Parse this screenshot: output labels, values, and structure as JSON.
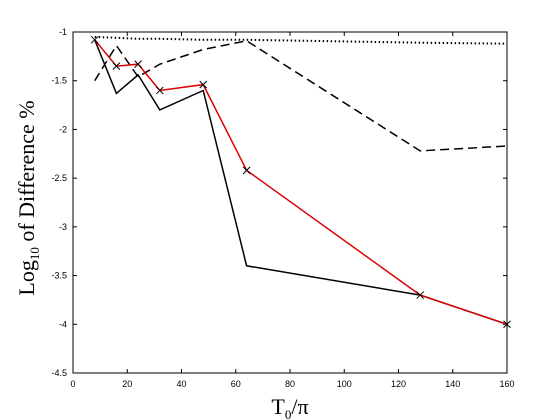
{
  "chart_data": {
    "type": "line",
    "xlabel": "T",
    "xlabel_sub": "0",
    "xlabel_tail": "/π",
    "ylabel_prefix": "Log",
    "ylabel_sub": "10",
    "ylabel_tail": " of Difference %",
    "xlim": [
      0,
      160
    ],
    "ylim": [
      -4.5,
      -1
    ],
    "xticks": [
      0,
      20,
      40,
      60,
      80,
      100,
      120,
      140,
      160
    ],
    "xtick_labels": [
      "0",
      "20",
      "40",
      "60",
      "80",
      "100",
      "120",
      "140",
      "160"
    ],
    "yticks": [
      -1,
      -1.5,
      -2,
      -2.5,
      -3,
      -3.5,
      -4,
      -4.5
    ],
    "ytick_labels": [
      "-1",
      "-1.5",
      "-2",
      "-2.5",
      "-3",
      "-3.5",
      "-4",
      "-4.5"
    ],
    "grid": false,
    "series": [
      {
        "style": "dotted",
        "color": "#000000",
        "x": [
          8,
          16,
          24,
          32,
          48,
          64,
          128,
          160
        ],
        "y": [
          -1.05,
          -1.06,
          -1.07,
          -1.07,
          -1.08,
          -1.08,
          -1.11,
          -1.12
        ]
      },
      {
        "style": "dashed",
        "color": "#000000",
        "x": [
          8,
          16,
          24,
          32,
          48,
          64,
          128,
          160
        ],
        "y": [
          -1.5,
          -1.14,
          -1.46,
          -1.33,
          -1.18,
          -1.09,
          -2.22,
          -2.17
        ]
      },
      {
        "style": "solid",
        "color": "#000000",
        "x": [
          8,
          16,
          24,
          32,
          48,
          64,
          128,
          160
        ],
        "y": [
          -1.08,
          -1.63,
          -1.44,
          -1.8,
          -1.6,
          -3.4,
          -3.7,
          -4.0
        ]
      },
      {
        "style": "solid",
        "color": "#dd0000",
        "marker": "x",
        "x": [
          8,
          16,
          24,
          32,
          48,
          64,
          128,
          160
        ],
        "y": [
          -1.08,
          -1.35,
          -1.33,
          -1.6,
          -1.54,
          -2.42,
          -3.7,
          -4.0
        ]
      }
    ]
  }
}
